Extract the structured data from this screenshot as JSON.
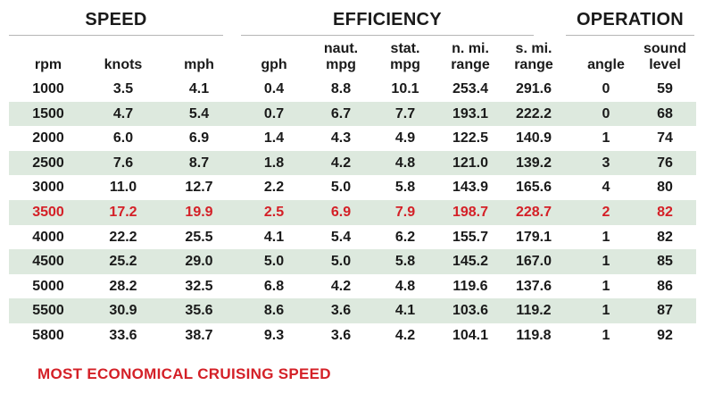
{
  "groups": {
    "speed": "SPEED",
    "efficiency": "EFFICIENCY",
    "operation": "OPERATION"
  },
  "columns": [
    [
      "rpm"
    ],
    [
      "knots"
    ],
    [
      "mph"
    ],
    [
      "gph"
    ],
    [
      "naut.",
      "mpg"
    ],
    [
      "stat.",
      "mpg"
    ],
    [
      "n. mi.",
      "range"
    ],
    [
      "s. mi.",
      "range"
    ],
    [
      "angle"
    ],
    [
      "sound",
      "level"
    ]
  ],
  "rows": [
    [
      "1000",
      "3.5",
      "4.1",
      "0.4",
      "8.8",
      "10.1",
      "253.4",
      "291.6",
      "0",
      "59"
    ],
    [
      "1500",
      "4.7",
      "5.4",
      "0.7",
      "6.7",
      "7.7",
      "193.1",
      "222.2",
      "0",
      "68"
    ],
    [
      "2000",
      "6.0",
      "6.9",
      "1.4",
      "4.3",
      "4.9",
      "122.5",
      "140.9",
      "1",
      "74"
    ],
    [
      "2500",
      "7.6",
      "8.7",
      "1.8",
      "4.2",
      "4.8",
      "121.0",
      "139.2",
      "3",
      "76"
    ],
    [
      "3000",
      "11.0",
      "12.7",
      "2.2",
      "5.0",
      "5.8",
      "143.9",
      "165.6",
      "4",
      "80"
    ],
    [
      "3500",
      "17.2",
      "19.9",
      "2.5",
      "6.9",
      "7.9",
      "198.7",
      "228.7",
      "2",
      "82"
    ],
    [
      "4000",
      "22.2",
      "25.5",
      "4.1",
      "5.4",
      "6.2",
      "155.7",
      "179.1",
      "1",
      "82"
    ],
    [
      "4500",
      "25.2",
      "29.0",
      "5.0",
      "5.0",
      "5.8",
      "145.2",
      "167.0",
      "1",
      "85"
    ],
    [
      "5000",
      "28.2",
      "32.5",
      "6.8",
      "4.2",
      "4.8",
      "119.6",
      "137.6",
      "1",
      "86"
    ],
    [
      "5500",
      "30.9",
      "35.6",
      "8.6",
      "3.6",
      "4.1",
      "103.6",
      "119.2",
      "1",
      "87"
    ],
    [
      "5800",
      "33.6",
      "38.7",
      "9.3",
      "3.6",
      "4.2",
      "104.1",
      "119.8",
      "1",
      "92"
    ]
  ],
  "highlight_row": 5,
  "shaded_rows": [
    1,
    3,
    5,
    7,
    9
  ],
  "footnote": "MOST ECONOMICAL CRUISING SPEED",
  "colors": {
    "highlight": "#d42027",
    "shade": "#dde9de",
    "text": "#1a1a1a"
  }
}
